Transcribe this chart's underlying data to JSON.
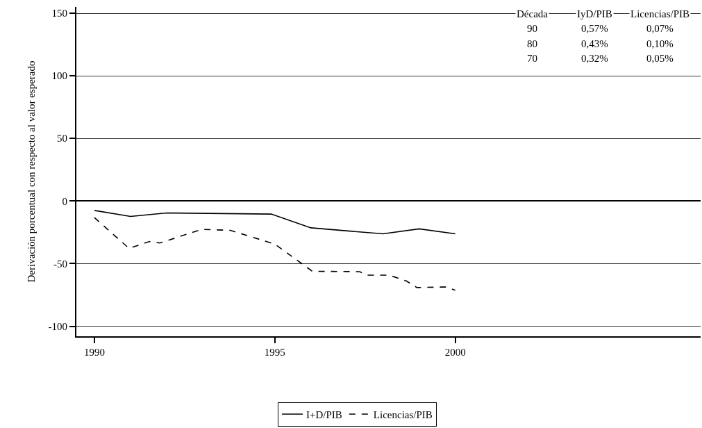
{
  "chart_data": {
    "type": "line",
    "ylabel": "Derivación porcentual con respecto al valor esperado",
    "xlim": [
      1989.5,
      2006.8
    ],
    "xticks": [
      1990,
      1995,
      2000
    ],
    "ylim": [
      -108,
      155
    ],
    "yticks": [
      -100,
      -50,
      0,
      50,
      100,
      150
    ],
    "grid": "y",
    "legend": "bottom",
    "marker": "none",
    "series": [
      {
        "name": "I+D/PIB",
        "color": "#000000",
        "line_style": "solid",
        "x": [
          1990,
          1991,
          1992,
          1994.9,
          1996,
          1998,
          1999,
          2000
        ],
        "values": [
          -7.5,
          -12.3,
          -9.5,
          -10.4,
          -21.4,
          -26.2,
          -22.2,
          -26.2
        ]
      },
      {
        "name": "Licencias/PIB",
        "color": "#000000",
        "line_style": "dashed",
        "x": [
          1990,
          1990.96,
          1991.53,
          1991.81,
          1992.98,
          1993.77,
          1995,
          1996.04,
          1997.35,
          1997.56,
          1998.17,
          1998.65,
          1998.94,
          1999.73,
          2000
        ],
        "values": [
          -13.2,
          -37.8,
          -32.3,
          -33.5,
          -22.6,
          -23.4,
          -34.4,
          -56.1,
          -56.4,
          -59.2,
          -59.2,
          -63.9,
          -69.1,
          -68.6,
          -71.2
        ]
      }
    ],
    "annotations": [
      "Década",
      "IyD/PIB",
      "Licencias/PIB",
      "90",
      "0,57%",
      "0,07%",
      "80",
      "0,43%",
      "0,10%",
      "70",
      "0,32%",
      "0,05%"
    ]
  }
}
